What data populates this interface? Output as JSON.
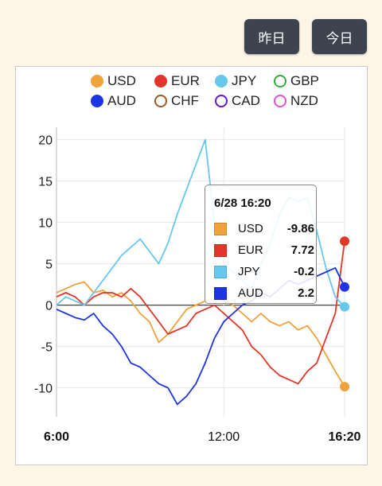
{
  "buttons": {
    "yesterday": "昨日",
    "today": "今日"
  },
  "legend": [
    {
      "name": "USD",
      "color": "#f0a23a",
      "filled": true
    },
    {
      "name": "EUR",
      "color": "#e2362a",
      "filled": true
    },
    {
      "name": "JPY",
      "color": "#67c8ee",
      "filled": true
    },
    {
      "name": "GBP",
      "color": "#2fae3a",
      "filled": false
    },
    {
      "name": "AUD",
      "color": "#1c35e0",
      "filled": true
    },
    {
      "name": "CHF",
      "color": "#9a5a23",
      "filled": false
    },
    {
      "name": "CAD",
      "color": "#6516c8",
      "filled": false
    },
    {
      "name": "NZD",
      "color": "#e055c6",
      "filled": false
    }
  ],
  "tooltip": {
    "title": "6/28 16:20",
    "rows": [
      {
        "name": "USD",
        "value": "-9.86",
        "color": "#f0a23a"
      },
      {
        "name": "EUR",
        "value": "7.72",
        "color": "#e2362a"
      },
      {
        "name": "JPY",
        "value": "-0.2",
        "color": "#67c8ee"
      },
      {
        "name": "AUD",
        "value": "2.2",
        "color": "#1c35e0"
      }
    ]
  },
  "chart_data": {
    "type": "line",
    "x_ticks": [
      "6:00",
      "12:00",
      "16:20"
    ],
    "y_ticks": [
      20,
      15,
      10,
      5,
      0,
      -5,
      -10
    ],
    "xlim": [
      "6:00",
      "16:20"
    ],
    "ylim": [
      -13.5,
      21.5
    ],
    "x": [
      "6:00",
      "6:20",
      "6:40",
      "7:00",
      "7:20",
      "7:40",
      "8:00",
      "8:20",
      "8:40",
      "9:00",
      "9:20",
      "9:40",
      "10:00",
      "10:20",
      "10:40",
      "11:00",
      "11:20",
      "11:40",
      "12:00",
      "12:20",
      "12:40",
      "13:00",
      "13:20",
      "13:40",
      "14:00",
      "14:20",
      "14:40",
      "15:00",
      "15:20",
      "15:40",
      "16:00",
      "16:20"
    ],
    "series": [
      {
        "name": "USD",
        "color": "#f0a23a",
        "values": [
          1.5,
          2.0,
          2.5,
          2.8,
          1.5,
          1.8,
          1.0,
          1.5,
          0.5,
          -1.0,
          -2.0,
          -4.5,
          -3.5,
          -2.0,
          -0.5,
          0.0,
          0.5,
          1.0,
          0.5,
          0.0,
          -1.0,
          -2.0,
          -1.0,
          -2.0,
          -2.5,
          -2.0,
          -3.0,
          -2.5,
          -4.0,
          -6.0,
          -8.0,
          -9.86
        ]
      },
      {
        "name": "EUR",
        "color": "#e2362a",
        "values": [
          1.0,
          1.5,
          1.0,
          0.0,
          1.0,
          1.5,
          1.5,
          1.0,
          2.0,
          1.0,
          -0.5,
          -2.0,
          -3.5,
          -3.0,
          -2.5,
          -1.0,
          -0.5,
          0.0,
          -1.0,
          -2.0,
          -3.0,
          -5.0,
          -6.0,
          -7.5,
          -8.5,
          -9.0,
          -9.5,
          -8.0,
          -7.0,
          -4.0,
          -1.0,
          7.72
        ]
      },
      {
        "name": "JPY",
        "color": "#67c8ee",
        "values": [
          0.0,
          1.0,
          0.5,
          0.0,
          1.5,
          3.0,
          4.5,
          6.0,
          7.0,
          8.0,
          6.5,
          5.0,
          7.5,
          11.0,
          14.0,
          17.0,
          20.0,
          10.0,
          5.0,
          4.0,
          3.0,
          2.0,
          5.0,
          7.5,
          11.0,
          13.0,
          12.5,
          13.0,
          9.0,
          4.5,
          1.0,
          -0.2
        ]
      },
      {
        "name": "AUD",
        "color": "#1c35e0",
        "values": [
          -0.5,
          -1.0,
          -1.5,
          -1.8,
          -1.0,
          -2.5,
          -3.5,
          -5.0,
          -7.0,
          -7.5,
          -8.5,
          -9.5,
          -10.0,
          -12.0,
          -11.0,
          -9.5,
          -7.0,
          -4.0,
          -2.0,
          -1.0,
          0.0,
          0.5,
          1.5,
          1.0,
          2.0,
          3.0,
          2.5,
          3.0,
          3.5,
          4.0,
          4.5,
          2.2
        ]
      }
    ]
  }
}
